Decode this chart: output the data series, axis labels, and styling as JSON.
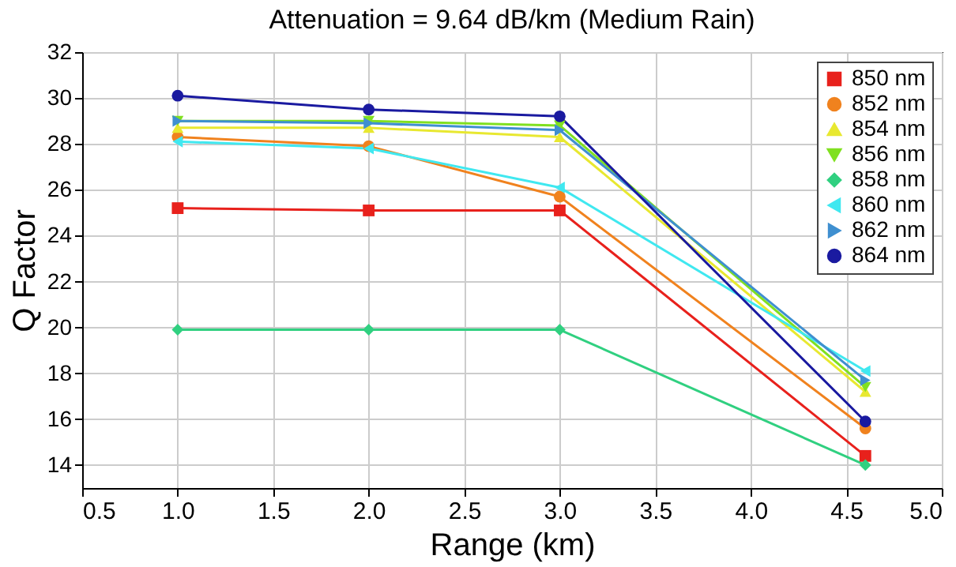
{
  "chart_data": {
    "type": "line",
    "title": "Attenuation = 9.64 dB/km (Medium Rain)",
    "xlabel": "Range (km)",
    "ylabel": "Q Factor",
    "x": [
      1,
      2,
      3,
      4.6
    ],
    "xlim": [
      0.5,
      5
    ],
    "xticks": [
      {
        "value": 0.5,
        "label": "0.5"
      },
      {
        "value": 1,
        "label": "1.0"
      },
      {
        "value": 1.5,
        "label": "1.5"
      },
      {
        "value": 2,
        "label": "2.0"
      },
      {
        "value": 2.5,
        "label": "2.5"
      },
      {
        "value": 3,
        "label": "3.0"
      },
      {
        "value": 3.5,
        "label": "3.5"
      },
      {
        "value": 4,
        "label": "4.0"
      },
      {
        "value": 4.5,
        "label": "4.5"
      },
      {
        "value": 5,
        "label": "5.0"
      }
    ],
    "ylim": [
      13,
      32
    ],
    "yticks": [
      14,
      16,
      18,
      20,
      22,
      24,
      26,
      28,
      30,
      32
    ],
    "grid": true,
    "legend": "top right",
    "line_style": "solid",
    "series": [
      {
        "name": "850 nm",
        "color": "#e8211c",
        "marker": "square",
        "values": [
          25.2,
          25.1,
          25.1,
          14.4
        ]
      },
      {
        "name": "852 nm",
        "color": "#f0821e",
        "marker": "circle",
        "values": [
          28.3,
          27.9,
          25.7,
          15.6
        ]
      },
      {
        "name": "854 nm",
        "color": "#e8e830",
        "marker": "triangle",
        "values": [
          28.7,
          28.7,
          28.3,
          17.2
        ]
      },
      {
        "name": "856 nm",
        "color": "#80e020",
        "marker": "triangle-down",
        "values": [
          29.0,
          29.0,
          28.8,
          17.4
        ]
      },
      {
        "name": "858 nm",
        "color": "#30d080",
        "marker": "diamond",
        "values": [
          19.9,
          19.9,
          19.9,
          14.0
        ]
      },
      {
        "name": "860 nm",
        "color": "#40e8f0",
        "marker": "triangle-left",
        "values": [
          28.1,
          27.8,
          26.1,
          18.1
        ]
      },
      {
        "name": "862 nm",
        "color": "#3f8fd0",
        "marker": "triangle-right",
        "values": [
          29.0,
          28.9,
          28.6,
          17.7
        ]
      },
      {
        "name": "864 nm",
        "color": "#1a1aa0",
        "marker": "circle",
        "values": [
          30.1,
          29.5,
          29.2,
          15.9
        ]
      }
    ]
  }
}
